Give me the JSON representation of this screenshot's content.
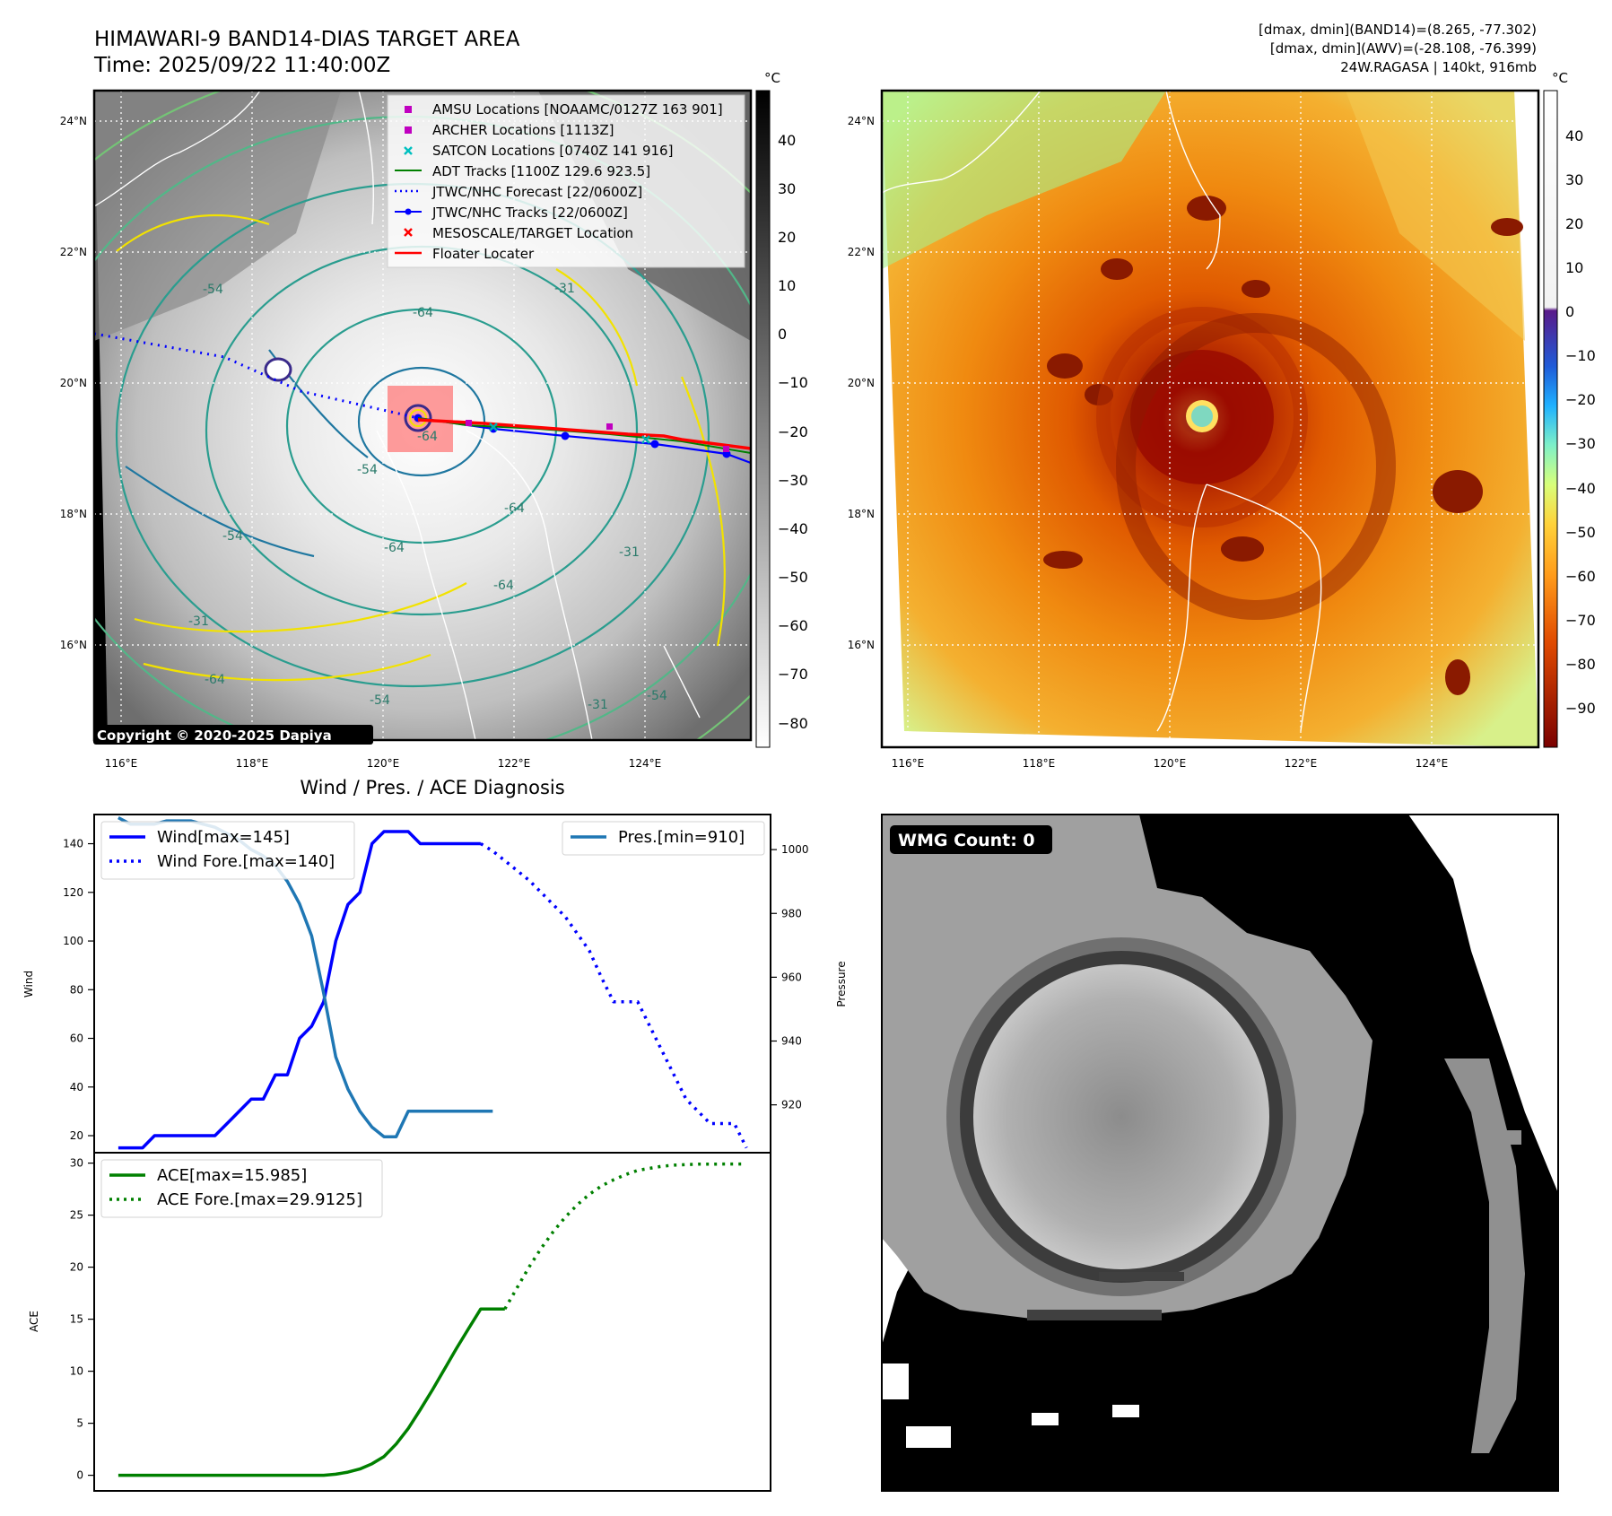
{
  "header": {
    "title_line1": "HIMAWARI-9 BAND14-DIAS TARGET AREA",
    "title_line2": "Time: 2025/09/22 11:40:00Z",
    "info_line1": "[dmax, dmin](BAND14)=(8.265, -77.302)",
    "info_line2": "[dmax, dmin](AWV)=(-28.108, -76.399)",
    "info_line3": "24W.RAGASA | 140kt, 916mb"
  },
  "map_axes": {
    "lat_labels": [
      "24°N",
      "22°N",
      "20°N",
      "18°N",
      "16°N"
    ],
    "lon_labels": [
      "116°E",
      "118°E",
      "120°E",
      "122°E",
      "124°E"
    ],
    "unit_label": "°C",
    "copyright": "Copyright © 2020-2025 Dapiya"
  },
  "left_map": {
    "colorbar_ticks": [
      "40",
      "30",
      "20",
      "10",
      "0",
      "−10",
      "−20",
      "−30",
      "−40",
      "−50",
      "−60",
      "−70",
      "−80"
    ],
    "contour_labels": [
      "-54",
      "-64",
      "-31",
      "-64",
      "-54",
      "-64",
      "-64",
      "-31",
      "-54",
      "-64",
      "-31",
      "-31",
      "-54",
      "-64",
      "-54"
    ],
    "legend": [
      {
        "label": "AMSU Locations [NOAAMC/0127Z 163 901]",
        "color": "#c000c0",
        "marker": "square"
      },
      {
        "label": "ARCHER Locations [1113Z]",
        "color": "#c000c0",
        "marker": "square"
      },
      {
        "label": "SATCON Locations [0740Z 141 916]",
        "color": "#00c0c0",
        "marker": "x"
      },
      {
        "label": "ADT Tracks [1100Z 129.6 923.5]",
        "color": "#008000",
        "marker": "line"
      },
      {
        "label": "JTWC/NHC Forecast [22/0600Z]",
        "color": "#0000ff",
        "marker": "dotted"
      },
      {
        "label": "JTWC/NHC Tracks [22/0600Z]",
        "color": "#0000ff",
        "marker": "line-dot"
      },
      {
        "label": "MESOSCALE/TARGET Location",
        "color": "#ff0000",
        "marker": "x"
      },
      {
        "label": "Floater Locater",
        "color": "#ff0000",
        "marker": "line"
      }
    ]
  },
  "right_map": {
    "colorbar_ticks": [
      "40",
      "30",
      "20",
      "10",
      "0",
      "−10",
      "−20",
      "−30",
      "−40",
      "−50",
      "−60",
      "−70",
      "−80",
      "−90"
    ]
  },
  "diag": {
    "title": "Wind / Pres. / ACE Diagnosis",
    "wind_ylabel": "Wind",
    "pres_ylabel": "Pressure",
    "ace_ylabel": "ACE",
    "wind_ticks": [
      "140",
      "120",
      "100",
      "80",
      "60",
      "40",
      "20"
    ],
    "pres_ticks": [
      "1000",
      "980",
      "960",
      "940",
      "920"
    ],
    "ace_ticks": [
      "30",
      "25",
      "20",
      "15",
      "10",
      "5",
      "0"
    ],
    "legend_wind": "Wind[max=145]",
    "legend_wind_fore": "Wind Fore.[max=140]",
    "legend_pres": "Pres.[min=910]",
    "legend_ace": "ACE[max=15.985]",
    "legend_ace_fore": "ACE Fore.[max=29.9125]"
  },
  "wmg": {
    "label": "WMG Count: 0"
  },
  "chart_data": [
    {
      "type": "line",
      "title": "Wind / Pres. / ACE Diagnosis",
      "ylabel": "Wind",
      "ylim": [
        13,
        152
      ],
      "x": [
        0,
        1,
        2,
        3,
        4,
        5,
        6,
        7,
        8,
        9,
        10,
        11,
        12,
        13,
        14,
        15,
        16,
        17,
        18,
        19,
        20,
        21,
        22,
        23,
        24,
        25,
        26,
        27,
        28,
        29,
        30,
        31,
        32,
        33,
        34,
        35,
        36,
        37,
        38,
        39,
        40,
        41,
        42,
        43,
        44,
        45,
        46,
        47,
        48,
        49,
        50,
        51,
        52
      ],
      "series": [
        {
          "name": "Wind[max=145]",
          "x": [
            0,
            1,
            2,
            3,
            4,
            5,
            6,
            7,
            8,
            9,
            10,
            11,
            12,
            13,
            14,
            15,
            16,
            17,
            18,
            19,
            20,
            21,
            22,
            23,
            24,
            25,
            26,
            27,
            28,
            29,
            30
          ],
          "values": [
            15,
            15,
            15,
            20,
            20,
            20,
            20,
            20,
            20,
            25,
            30,
            35,
            35,
            45,
            45,
            60,
            65,
            75,
            100,
            115,
            120,
            140,
            145,
            145,
            145,
            140,
            140,
            140,
            140,
            140,
            140
          ]
        },
        {
          "name": "Wind Fore.[max=140]",
          "x": [
            30,
            31,
            32,
            33,
            34,
            35,
            36,
            37,
            38,
            39,
            40,
            41,
            42,
            43,
            44,
            45,
            46,
            47,
            48,
            49,
            50,
            51,
            52
          ],
          "values": [
            140,
            137,
            133,
            129,
            125,
            120,
            115,
            110,
            103,
            96,
            85,
            75,
            75,
            75,
            65,
            55,
            45,
            35,
            30,
            25,
            25,
            25,
            15
          ]
        },
        {
          "name": "Pres.[min=910]",
          "axis": "right",
          "ylim": [
            905,
            1011
          ],
          "x": [
            0,
            1,
            2,
            3,
            4,
            5,
            6,
            7,
            8,
            9,
            10,
            11,
            12,
            13,
            14,
            15,
            16,
            17,
            18,
            19,
            20,
            21,
            22,
            23,
            24,
            25,
            26,
            27,
            28,
            29,
            30,
            31
          ],
          "values": [
            1010,
            1008,
            1008,
            1008,
            1009,
            1009,
            1009,
            1008,
            1007,
            1005,
            1003,
            1000,
            998,
            995,
            990,
            983,
            973,
            955,
            935,
            925,
            918,
            913,
            910,
            910,
            918,
            918,
            918,
            918,
            918,
            918,
            918,
            918
          ]
        }
      ]
    },
    {
      "type": "line",
      "ylabel": "ACE",
      "ylim": [
        -1.5,
        31
      ],
      "series": [
        {
          "name": "ACE[max=15.985]",
          "x": [
            0,
            2,
            4,
            6,
            8,
            10,
            12,
            14,
            16,
            17,
            18,
            19,
            20,
            21,
            22,
            23,
            24,
            25,
            26,
            27,
            28,
            29,
            30,
            31,
            32
          ],
          "values": [
            0,
            0,
            0,
            0,
            0,
            0,
            0,
            0,
            0,
            0,
            0.1,
            0.3,
            0.6,
            1.1,
            1.8,
            3,
            4.5,
            6.3,
            8.2,
            10.2,
            12.2,
            14.1,
            15.985,
            15.985,
            15.985
          ]
        },
        {
          "name": "ACE Fore.[max=29.9125]",
          "x": [
            32,
            33,
            34,
            35,
            36,
            37,
            38,
            39,
            40,
            41,
            42,
            43,
            44,
            45,
            46,
            47,
            48,
            49,
            50,
            51,
            52
          ],
          "values": [
            15.985,
            18,
            20,
            21.8,
            23.4,
            24.8,
            26,
            27,
            27.8,
            28.4,
            28.9,
            29.3,
            29.5,
            29.7,
            29.8,
            29.85,
            29.9,
            29.9,
            29.91,
            29.91,
            29.9125
          ]
        }
      ]
    }
  ]
}
